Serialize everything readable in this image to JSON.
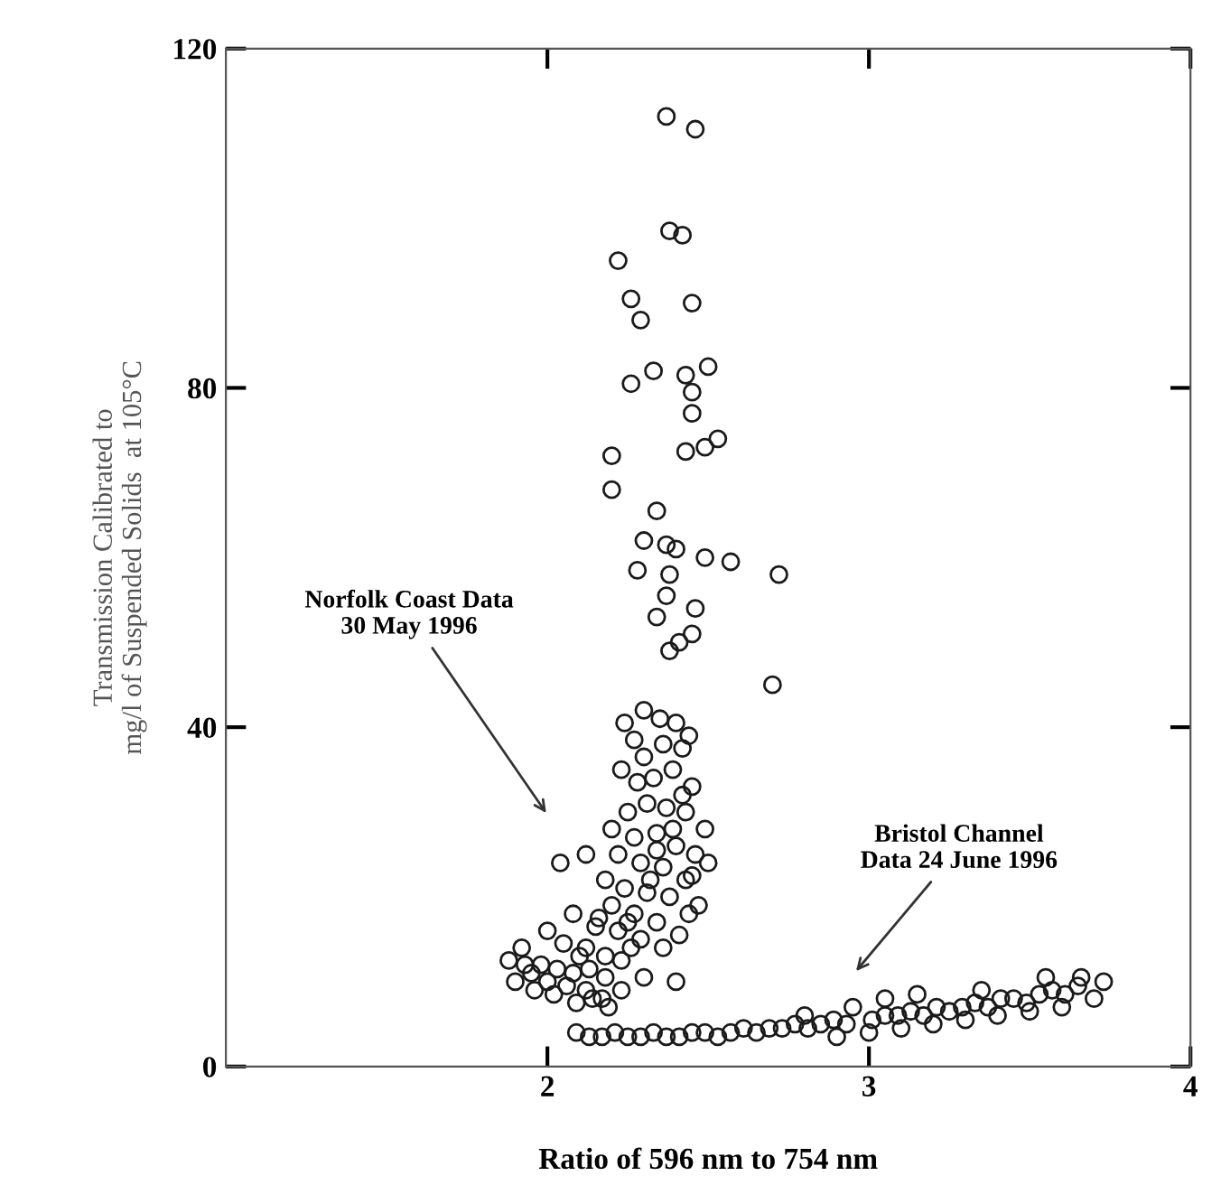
{
  "chart_data": {
    "type": "scatter",
    "xlabel": "Ratio of 596 nm to 754 nm",
    "ylabel": "Transmission Calibrated to\nmg/l of Suspended Solids  at 105°C",
    "xlim": [
      1,
      4
    ],
    "ylim": [
      0,
      120
    ],
    "xticks": [
      2,
      3,
      4
    ],
    "yticks": [
      0,
      40,
      80,
      120
    ],
    "grid": false,
    "marker": "circle",
    "annotations": [
      "Norfolk Coast Data\n30 May 1996",
      "Bristol Channel\nData 24 June 1996"
    ],
    "series": [
      {
        "color": "#1a1a1a",
        "x": [
          2.37,
          2.46,
          2.38,
          2.42,
          2.22,
          2.45,
          2.26,
          2.29,
          2.5,
          2.33,
          2.43,
          2.26,
          2.45,
          2.45,
          2.49,
          2.53,
          2.43,
          2.2,
          2.2,
          2.34,
          2.57,
          2.3,
          2.37,
          2.4,
          2.49,
          2.28,
          2.38,
          2.37,
          2.46,
          2.34,
          2.45,
          2.41,
          2.38,
          2.72,
          2.7,
          2.24,
          2.3,
          2.35,
          2.4,
          2.44,
          2.27,
          2.3,
          2.36,
          2.42,
          2.23,
          2.28,
          2.33,
          2.39,
          2.45,
          2.25,
          2.31,
          2.37,
          2.43,
          2.49,
          2.2,
          2.27,
          2.34,
          2.4,
          2.46,
          2.5,
          2.22,
          2.29,
          2.36,
          2.43,
          2.47,
          2.18,
          2.24,
          2.31,
          2.38,
          2.44,
          2.04,
          2.12,
          2.2,
          2.27,
          2.34,
          2.41,
          2.45,
          2.08,
          2.15,
          2.22,
          2.29,
          2.36,
          2.4,
          2.3,
          2.23,
          2.0,
          2.05,
          2.12,
          2.18,
          2.23,
          1.98,
          2.03,
          2.08,
          2.13,
          2.18,
          1.93,
          2.0,
          2.06,
          2.12,
          2.17,
          1.96,
          2.02,
          2.09,
          2.14,
          2.19,
          2.25,
          2.32,
          2.39,
          2.42,
          2.26,
          2.16,
          2.34,
          1.88,
          1.9,
          1.92,
          1.95,
          2.1
        ],
        "values": [
          112,
          110.5,
          98.5,
          98,
          95,
          90,
          90.5,
          88,
          82.5,
          82,
          81.5,
          80.5,
          79.5,
          77,
          73,
          74,
          72.5,
          72,
          68,
          65.5,
          59.5,
          62,
          61.5,
          61,
          60,
          58.5,
          58,
          55.5,
          54,
          53,
          51,
          50,
          49,
          58,
          45,
          40.5,
          42,
          41,
          40.5,
          39,
          38.5,
          36.5,
          38,
          37.5,
          35,
          33.5,
          34,
          35,
          33,
          30,
          31,
          30.5,
          30,
          28,
          28,
          27,
          27.5,
          26,
          25,
          24,
          25,
          24,
          23.5,
          22,
          19,
          22,
          21,
          20.5,
          20,
          18,
          24,
          25,
          19,
          18,
          17,
          15.5,
          22.5,
          18,
          16.5,
          16,
          15,
          14,
          10,
          10.5,
          9,
          16,
          14.5,
          14,
          13,
          12.5,
          12,
          11.5,
          11,
          11.5,
          10.5,
          12,
          10,
          9.5,
          9,
          8,
          9,
          8.5,
          7.5,
          8,
          7,
          17,
          22,
          28,
          32,
          14,
          17.5,
          25.5,
          12.5,
          10,
          14,
          11,
          13
        ]
      },
      {
        "color": "#1a1a1a",
        "x": [
          2.09,
          2.13,
          2.17,
          2.21,
          2.25,
          2.29,
          2.33,
          2.37,
          2.41,
          2.45,
          2.49,
          2.53,
          2.57,
          2.61,
          2.65,
          2.69,
          2.73,
          2.77,
          2.81,
          2.85,
          2.89,
          2.93,
          3.01,
          3.05,
          3.09,
          3.13,
          3.17,
          3.21,
          3.25,
          3.29,
          3.33,
          3.37,
          3.41,
          3.45,
          3.49,
          3.53,
          3.57,
          3.61,
          3.65,
          3.73,
          2.95,
          3.0,
          3.1,
          3.2,
          3.3,
          3.4,
          3.5,
          3.6,
          3.7,
          2.8,
          2.9,
          3.05,
          3.15,
          3.35,
          3.55,
          3.66
        ],
        "values": [
          4,
          3.5,
          3.5,
          4,
          3.5,
          3.5,
          4,
          3.5,
          3.5,
          4,
          4,
          3.5,
          4,
          4.5,
          4,
          4.5,
          4.5,
          5,
          4.5,
          5,
          5.5,
          5,
          5.5,
          6,
          6,
          6.5,
          6,
          7,
          6.5,
          7,
          7.5,
          7,
          8,
          8,
          7.5,
          8.5,
          9,
          8.5,
          9.5,
          10,
          7,
          4,
          4.5,
          5,
          5.5,
          6,
          6.5,
          7,
          8,
          6,
          3.5,
          8,
          8.5,
          9,
          10.5,
          10.5
        ]
      }
    ]
  }
}
